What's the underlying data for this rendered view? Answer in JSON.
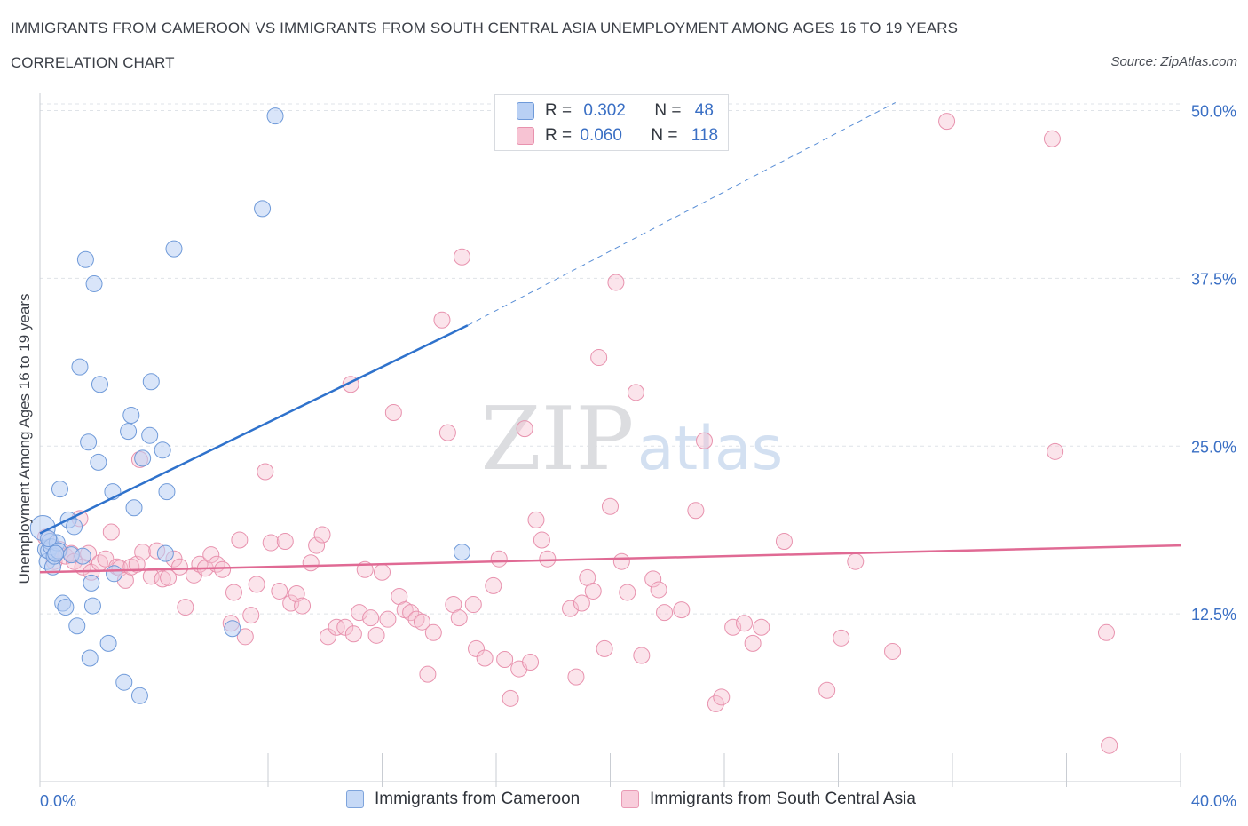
{
  "header": {
    "title": "IMMIGRANTS FROM CAMEROON VS IMMIGRANTS FROM SOUTH CENTRAL ASIA UNEMPLOYMENT AMONG AGES 16 TO 19 YEARS",
    "subtitle": "CORRELATION CHART",
    "source": "Source: ZipAtlas.com"
  },
  "watermark": {
    "zip": "ZIP",
    "atlas": "atlas"
  },
  "stats": {
    "series1": {
      "r_label": "R =",
      "r_value": "0.302",
      "n_label": "N =",
      "n_value": "48"
    },
    "series2": {
      "r_label": "R =",
      "r_value": "0.060",
      "n_label": "N =",
      "n_value": "118"
    }
  },
  "legend": {
    "series1": "Immigrants from Cameroon",
    "series2": "Immigrants from South Central Asia"
  },
  "colors": {
    "series1_fill": "#b9d0f4",
    "series1_stroke": "#6f9ad9",
    "series1_line": "#2f72cc",
    "series2_fill": "#f7c3d3",
    "series2_stroke": "#e892ae",
    "series2_line": "#e06a94",
    "axis_label": "#3a6fc4",
    "grid": "#dfe3e8"
  },
  "chart_data": {
    "type": "scatter",
    "title": "IMMIGRANTS FROM CAMEROON VS IMMIGRANTS FROM SOUTH CENTRAL ASIA UNEMPLOYMENT AMONG AGES 16 TO 19 YEARS",
    "xlabel": "",
    "ylabel": "Unemployment Among Ages 16 to 19 years",
    "xlim": [
      0,
      40
    ],
    "ylim": [
      0,
      50.5
    ],
    "x_tick_labels": [
      "0.0%",
      "40.0%"
    ],
    "y_ticks": [
      12.5,
      25.0,
      37.5,
      50.0
    ],
    "y_tick_labels": [
      "12.5%",
      "25.0%",
      "37.5%",
      "50.0%"
    ],
    "grid": true,
    "legend_position": "bottom",
    "series": [
      {
        "name": "Immigrants from Cameroon",
        "r": 0.302,
        "n": 48,
        "trend": {
          "x0": 0,
          "y0": 18.5,
          "x1": 15.0,
          "y1": 34.0,
          "dashed_to_x": 30.0,
          "dashed_to_y": 50.6
        },
        "points": [
          [
            0.1,
            18.9
          ],
          [
            0.2,
            17.3
          ],
          [
            0.25,
            16.4
          ],
          [
            0.3,
            17.2
          ],
          [
            0.35,
            17.9
          ],
          [
            0.4,
            17.5
          ],
          [
            0.45,
            16.0
          ],
          [
            0.5,
            16.8
          ],
          [
            0.6,
            17.8
          ],
          [
            0.65,
            17.2
          ],
          [
            0.7,
            21.8
          ],
          [
            0.8,
            13.3
          ],
          [
            0.9,
            13.0
          ],
          [
            1.0,
            19.5
          ],
          [
            1.1,
            16.9
          ],
          [
            1.2,
            19.0
          ],
          [
            1.3,
            11.6
          ],
          [
            1.4,
            30.9
          ],
          [
            1.5,
            16.8
          ],
          [
            1.6,
            38.9
          ],
          [
            1.7,
            25.3
          ],
          [
            1.75,
            9.2
          ],
          [
            1.8,
            14.8
          ],
          [
            1.85,
            13.1
          ],
          [
            1.9,
            37.1
          ],
          [
            2.05,
            23.8
          ],
          [
            2.1,
            29.6
          ],
          [
            2.4,
            10.3
          ],
          [
            2.55,
            21.6
          ],
          [
            2.6,
            15.5
          ],
          [
            2.95,
            7.4
          ],
          [
            3.1,
            26.1
          ],
          [
            3.2,
            27.3
          ],
          [
            3.3,
            20.4
          ],
          [
            3.5,
            6.4
          ],
          [
            3.6,
            24.1
          ],
          [
            3.85,
            25.8
          ],
          [
            3.9,
            29.8
          ],
          [
            4.3,
            24.7
          ],
          [
            4.45,
            21.6
          ],
          [
            4.7,
            39.7
          ],
          [
            6.75,
            11.4
          ],
          [
            7.8,
            42.7
          ],
          [
            8.25,
            49.6
          ],
          [
            14.8,
            17.1
          ],
          [
            0.3,
            18.1
          ],
          [
            0.55,
            17.0
          ],
          [
            4.4,
            17.0
          ]
        ]
      },
      {
        "name": "Immigrants from South Central Asia",
        "r": 0.06,
        "n": 118,
        "trend": {
          "x0": 0,
          "y0": 15.6,
          "x1": 40.0,
          "y1": 17.6
        },
        "points": [
          [
            0.2,
            18.2
          ],
          [
            0.4,
            17.5
          ],
          [
            0.5,
            16.4
          ],
          [
            0.7,
            17.3
          ],
          [
            0.9,
            16.8
          ],
          [
            1.1,
            17.0
          ],
          [
            1.2,
            16.4
          ],
          [
            1.4,
            19.6
          ],
          [
            1.5,
            16.0
          ],
          [
            1.7,
            17.0
          ],
          [
            1.8,
            15.6
          ],
          [
            2.1,
            16.3
          ],
          [
            2.3,
            16.6
          ],
          [
            2.5,
            18.6
          ],
          [
            2.7,
            16.0
          ],
          [
            2.8,
            15.9
          ],
          [
            3.0,
            15.0
          ],
          [
            3.2,
            16.0
          ],
          [
            3.4,
            16.2
          ],
          [
            3.5,
            24.0
          ],
          [
            3.6,
            17.1
          ],
          [
            3.9,
            15.3
          ],
          [
            4.1,
            17.2
          ],
          [
            4.3,
            15.1
          ],
          [
            4.5,
            15.2
          ],
          [
            4.7,
            16.6
          ],
          [
            4.9,
            16.0
          ],
          [
            5.1,
            13.0
          ],
          [
            5.4,
            15.4
          ],
          [
            5.6,
            16.2
          ],
          [
            5.8,
            15.9
          ],
          [
            6.0,
            16.9
          ],
          [
            6.2,
            16.2
          ],
          [
            6.4,
            15.8
          ],
          [
            6.7,
            11.8
          ],
          [
            6.8,
            14.1
          ],
          [
            7.0,
            18.0
          ],
          [
            7.2,
            10.8
          ],
          [
            7.4,
            12.4
          ],
          [
            7.6,
            14.7
          ],
          [
            7.9,
            23.1
          ],
          [
            8.1,
            17.8
          ],
          [
            8.4,
            14.2
          ],
          [
            8.6,
            17.9
          ],
          [
            8.8,
            13.3
          ],
          [
            9.0,
            14.0
          ],
          [
            9.2,
            13.1
          ],
          [
            9.5,
            16.3
          ],
          [
            9.7,
            17.6
          ],
          [
            9.9,
            18.4
          ],
          [
            10.1,
            10.8
          ],
          [
            10.4,
            11.5
          ],
          [
            10.7,
            11.5
          ],
          [
            10.9,
            29.6
          ],
          [
            11.0,
            11.0
          ],
          [
            11.2,
            12.6
          ],
          [
            11.4,
            15.8
          ],
          [
            11.6,
            12.2
          ],
          [
            11.8,
            10.9
          ],
          [
            12.0,
            15.6
          ],
          [
            12.2,
            12.1
          ],
          [
            12.4,
            27.5
          ],
          [
            12.6,
            13.8
          ],
          [
            12.8,
            12.8
          ],
          [
            13.0,
            12.6
          ],
          [
            13.2,
            12.1
          ],
          [
            13.4,
            11.9
          ],
          [
            13.6,
            8.0
          ],
          [
            13.8,
            11.1
          ],
          [
            14.1,
            34.4
          ],
          [
            14.3,
            26.0
          ],
          [
            14.5,
            13.2
          ],
          [
            14.7,
            12.2
          ],
          [
            14.8,
            39.1
          ],
          [
            15.2,
            13.2
          ],
          [
            15.3,
            9.9
          ],
          [
            15.6,
            9.2
          ],
          [
            15.9,
            14.6
          ],
          [
            16.1,
            16.6
          ],
          [
            16.3,
            9.1
          ],
          [
            16.5,
            6.2
          ],
          [
            16.8,
            8.4
          ],
          [
            17.0,
            26.3
          ],
          [
            17.2,
            8.9
          ],
          [
            17.4,
            19.5
          ],
          [
            17.6,
            18.0
          ],
          [
            17.8,
            16.6
          ],
          [
            18.6,
            12.9
          ],
          [
            18.8,
            7.8
          ],
          [
            19.0,
            13.3
          ],
          [
            19.2,
            15.2
          ],
          [
            19.4,
            14.2
          ],
          [
            19.6,
            31.6
          ],
          [
            19.8,
            9.9
          ],
          [
            20.0,
            20.5
          ],
          [
            20.2,
            37.2
          ],
          [
            20.4,
            16.4
          ],
          [
            20.6,
            14.1
          ],
          [
            20.9,
            29.0
          ],
          [
            21.1,
            9.4
          ],
          [
            21.5,
            15.1
          ],
          [
            21.7,
            14.3
          ],
          [
            21.9,
            12.6
          ],
          [
            22.5,
            12.8
          ],
          [
            23.0,
            20.2
          ],
          [
            23.3,
            25.4
          ],
          [
            23.7,
            5.8
          ],
          [
            23.9,
            6.3
          ],
          [
            24.3,
            11.5
          ],
          [
            24.7,
            11.8
          ],
          [
            25.0,
            10.3
          ],
          [
            25.3,
            11.5
          ],
          [
            26.1,
            17.9
          ],
          [
            27.6,
            6.8
          ],
          [
            28.1,
            10.7
          ],
          [
            28.6,
            16.4
          ],
          [
            29.9,
            9.7
          ],
          [
            31.8,
            49.2
          ],
          [
            35.5,
            47.9
          ],
          [
            35.6,
            24.6
          ],
          [
            37.4,
            11.1
          ],
          [
            37.5,
            2.7
          ]
        ]
      }
    ]
  }
}
